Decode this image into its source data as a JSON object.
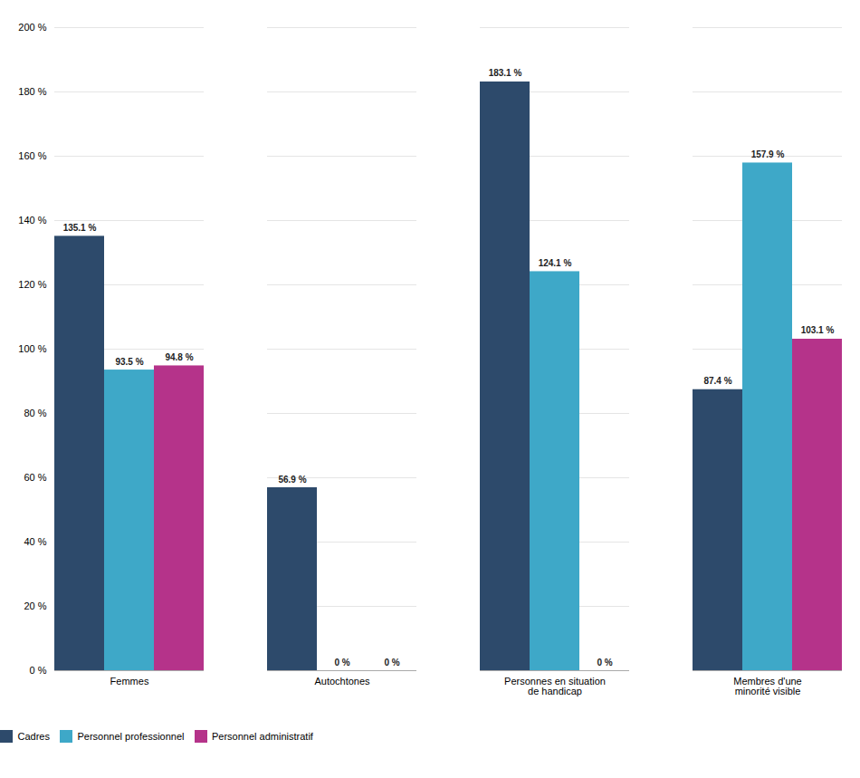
{
  "chart_data": {
    "type": "bar",
    "categories": [
      "Femmes",
      "Autochtones",
      "Personnes en situation\nde handicap",
      "Membres d'une\nminorité visible"
    ],
    "series": [
      {
        "name": "Cadres",
        "color": "#2d4a6b",
        "values": [
          135.1,
          56.9,
          183.1,
          87.4
        ],
        "value_labels": [
          "135.1 %",
          "56.9 %",
          "183.1 %",
          "87.4 %"
        ]
      },
      {
        "name": "Personnel professionnel",
        "color": "#3ea8c8",
        "values": [
          93.5,
          0.0,
          124.1,
          157.9
        ],
        "value_labels": [
          "93.5 %",
          "0 %",
          "124.1 %",
          "157.9 %"
        ]
      },
      {
        "name": "Personnel administratif",
        "color": "#b5338a",
        "values": [
          94.8,
          0.0,
          0.0,
          103.1
        ],
        "value_labels": [
          "94.8 %",
          "0 %",
          "0 %",
          "103.1 %"
        ]
      }
    ],
    "ylim": [
      0,
      200
    ],
    "yticks": [
      {
        "value": 0,
        "label": "0 %"
      },
      {
        "value": 20,
        "label": "20 %"
      },
      {
        "value": 40,
        "label": "40 %"
      },
      {
        "value": 60,
        "label": "60 %"
      },
      {
        "value": 80,
        "label": "80 %"
      },
      {
        "value": 100,
        "label": "100 %"
      },
      {
        "value": 120,
        "label": "120 %"
      },
      {
        "value": 140,
        "label": "140 %"
      },
      {
        "value": 160,
        "label": "160 %"
      },
      {
        "value": 180,
        "label": "180 %"
      },
      {
        "value": 200,
        "label": "200 %"
      }
    ],
    "grid": true,
    "legend": "bottom",
    "data_labels": true
  }
}
